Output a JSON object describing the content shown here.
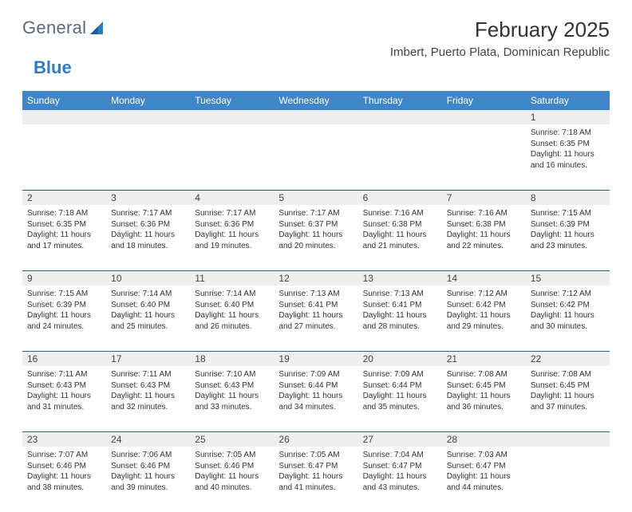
{
  "logo": {
    "word1": "General",
    "word2": "Blue"
  },
  "title": "February 2025",
  "location": "Imbert, Puerto Plata, Dominican Republic",
  "colors": {
    "header_bg": "#3f86c7",
    "header_text": "#ffffff",
    "week_border": "#2c5f8d",
    "daynum_bg": "#efefef",
    "page_bg": "#ffffff",
    "text": "#333333",
    "logo_gray": "#5b6b7a",
    "logo_blue": "#2f7bbf"
  },
  "day_labels": [
    "Sunday",
    "Monday",
    "Tuesday",
    "Wednesday",
    "Thursday",
    "Friday",
    "Saturday"
  ],
  "weeks": [
    [
      null,
      null,
      null,
      null,
      null,
      null,
      {
        "n": "1",
        "sunrise": "7:18 AM",
        "sunset": "6:35 PM",
        "d1": "Daylight: 11 hours",
        "d2": "and 16 minutes."
      }
    ],
    [
      {
        "n": "2",
        "sunrise": "7:18 AM",
        "sunset": "6:35 PM",
        "d1": "Daylight: 11 hours",
        "d2": "and 17 minutes."
      },
      {
        "n": "3",
        "sunrise": "7:17 AM",
        "sunset": "6:36 PM",
        "d1": "Daylight: 11 hours",
        "d2": "and 18 minutes."
      },
      {
        "n": "4",
        "sunrise": "7:17 AM",
        "sunset": "6:36 PM",
        "d1": "Daylight: 11 hours",
        "d2": "and 19 minutes."
      },
      {
        "n": "5",
        "sunrise": "7:17 AM",
        "sunset": "6:37 PM",
        "d1": "Daylight: 11 hours",
        "d2": "and 20 minutes."
      },
      {
        "n": "6",
        "sunrise": "7:16 AM",
        "sunset": "6:38 PM",
        "d1": "Daylight: 11 hours",
        "d2": "and 21 minutes."
      },
      {
        "n": "7",
        "sunrise": "7:16 AM",
        "sunset": "6:38 PM",
        "d1": "Daylight: 11 hours",
        "d2": "and 22 minutes."
      },
      {
        "n": "8",
        "sunrise": "7:15 AM",
        "sunset": "6:39 PM",
        "d1": "Daylight: 11 hours",
        "d2": "and 23 minutes."
      }
    ],
    [
      {
        "n": "9",
        "sunrise": "7:15 AM",
        "sunset": "6:39 PM",
        "d1": "Daylight: 11 hours",
        "d2": "and 24 minutes."
      },
      {
        "n": "10",
        "sunrise": "7:14 AM",
        "sunset": "6:40 PM",
        "d1": "Daylight: 11 hours",
        "d2": "and 25 minutes."
      },
      {
        "n": "11",
        "sunrise": "7:14 AM",
        "sunset": "6:40 PM",
        "d1": "Daylight: 11 hours",
        "d2": "and 26 minutes."
      },
      {
        "n": "12",
        "sunrise": "7:13 AM",
        "sunset": "6:41 PM",
        "d1": "Daylight: 11 hours",
        "d2": "and 27 minutes."
      },
      {
        "n": "13",
        "sunrise": "7:13 AM",
        "sunset": "6:41 PM",
        "d1": "Daylight: 11 hours",
        "d2": "and 28 minutes."
      },
      {
        "n": "14",
        "sunrise": "7:12 AM",
        "sunset": "6:42 PM",
        "d1": "Daylight: 11 hours",
        "d2": "and 29 minutes."
      },
      {
        "n": "15",
        "sunrise": "7:12 AM",
        "sunset": "6:42 PM",
        "d1": "Daylight: 11 hours",
        "d2": "and 30 minutes."
      }
    ],
    [
      {
        "n": "16",
        "sunrise": "7:11 AM",
        "sunset": "6:43 PM",
        "d1": "Daylight: 11 hours",
        "d2": "and 31 minutes."
      },
      {
        "n": "17",
        "sunrise": "7:11 AM",
        "sunset": "6:43 PM",
        "d1": "Daylight: 11 hours",
        "d2": "and 32 minutes."
      },
      {
        "n": "18",
        "sunrise": "7:10 AM",
        "sunset": "6:43 PM",
        "d1": "Daylight: 11 hours",
        "d2": "and 33 minutes."
      },
      {
        "n": "19",
        "sunrise": "7:09 AM",
        "sunset": "6:44 PM",
        "d1": "Daylight: 11 hours",
        "d2": "and 34 minutes."
      },
      {
        "n": "20",
        "sunrise": "7:09 AM",
        "sunset": "6:44 PM",
        "d1": "Daylight: 11 hours",
        "d2": "and 35 minutes."
      },
      {
        "n": "21",
        "sunrise": "7:08 AM",
        "sunset": "6:45 PM",
        "d1": "Daylight: 11 hours",
        "d2": "and 36 minutes."
      },
      {
        "n": "22",
        "sunrise": "7:08 AM",
        "sunset": "6:45 PM",
        "d1": "Daylight: 11 hours",
        "d2": "and 37 minutes."
      }
    ],
    [
      {
        "n": "23",
        "sunrise": "7:07 AM",
        "sunset": "6:46 PM",
        "d1": "Daylight: 11 hours",
        "d2": "and 38 minutes."
      },
      {
        "n": "24",
        "sunrise": "7:06 AM",
        "sunset": "6:46 PM",
        "d1": "Daylight: 11 hours",
        "d2": "and 39 minutes."
      },
      {
        "n": "25",
        "sunrise": "7:05 AM",
        "sunset": "6:46 PM",
        "d1": "Daylight: 11 hours",
        "d2": "and 40 minutes."
      },
      {
        "n": "26",
        "sunrise": "7:05 AM",
        "sunset": "6:47 PM",
        "d1": "Daylight: 11 hours",
        "d2": "and 41 minutes."
      },
      {
        "n": "27",
        "sunrise": "7:04 AM",
        "sunset": "6:47 PM",
        "d1": "Daylight: 11 hours",
        "d2": "and 43 minutes."
      },
      {
        "n": "28",
        "sunrise": "7:03 AM",
        "sunset": "6:47 PM",
        "d1": "Daylight: 11 hours",
        "d2": "and 44 minutes."
      },
      null
    ]
  ],
  "labels": {
    "sunrise": "Sunrise: ",
    "sunset": "Sunset: "
  }
}
